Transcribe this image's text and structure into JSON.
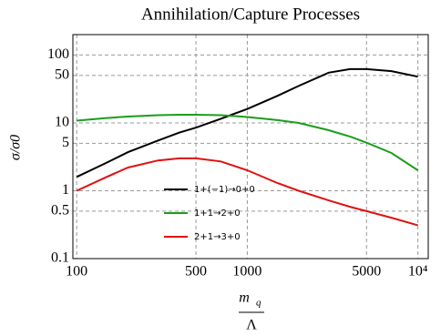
{
  "chart_data": {
    "type": "line",
    "title": "Annihilation/Capture Processes",
    "ylabel": "σ/σ0",
    "xlabel": {
      "top": "m",
      "sub": "q",
      "bottom": "Λ"
    },
    "log_x": true,
    "log_y": true,
    "grid": true,
    "xlim": [
      95,
      11500
    ],
    "ylim": [
      0.1,
      200
    ],
    "xticks": [
      100,
      500,
      1000,
      5000,
      {
        "value": 10000,
        "label": "10⁴"
      }
    ],
    "yticks": [
      0.1,
      0.5,
      1,
      5,
      10,
      50,
      100
    ],
    "x": [
      100,
      150,
      200,
      300,
      400,
      500,
      700,
      1000,
      1500,
      2000,
      3000,
      4000,
      5000,
      7000,
      10000
    ],
    "series": [
      {
        "name": "1+(−1)→0+0",
        "color": "#000000",
        "values": [
          1.6,
          2.6,
          3.7,
          5.5,
          7.2,
          8.5,
          11.5,
          16,
          25,
          35,
          55,
          62,
          62,
          58,
          48
        ]
      },
      {
        "name": "1+1→2+0",
        "color": "#1a9e1a",
        "values": [
          10.8,
          11.8,
          12.4,
          13,
          13.2,
          13.2,
          13,
          12.2,
          11,
          10,
          7.8,
          6.3,
          5.1,
          3.6,
          2.0
        ]
      },
      {
        "name": "2+1→3+0",
        "color": "#e01010",
        "values": [
          1.0,
          1.6,
          2.2,
          2.8,
          3.0,
          3.0,
          2.7,
          2.0,
          1.3,
          1.0,
          0.72,
          0.58,
          0.5,
          0.4,
          0.31
        ]
      }
    ]
  }
}
